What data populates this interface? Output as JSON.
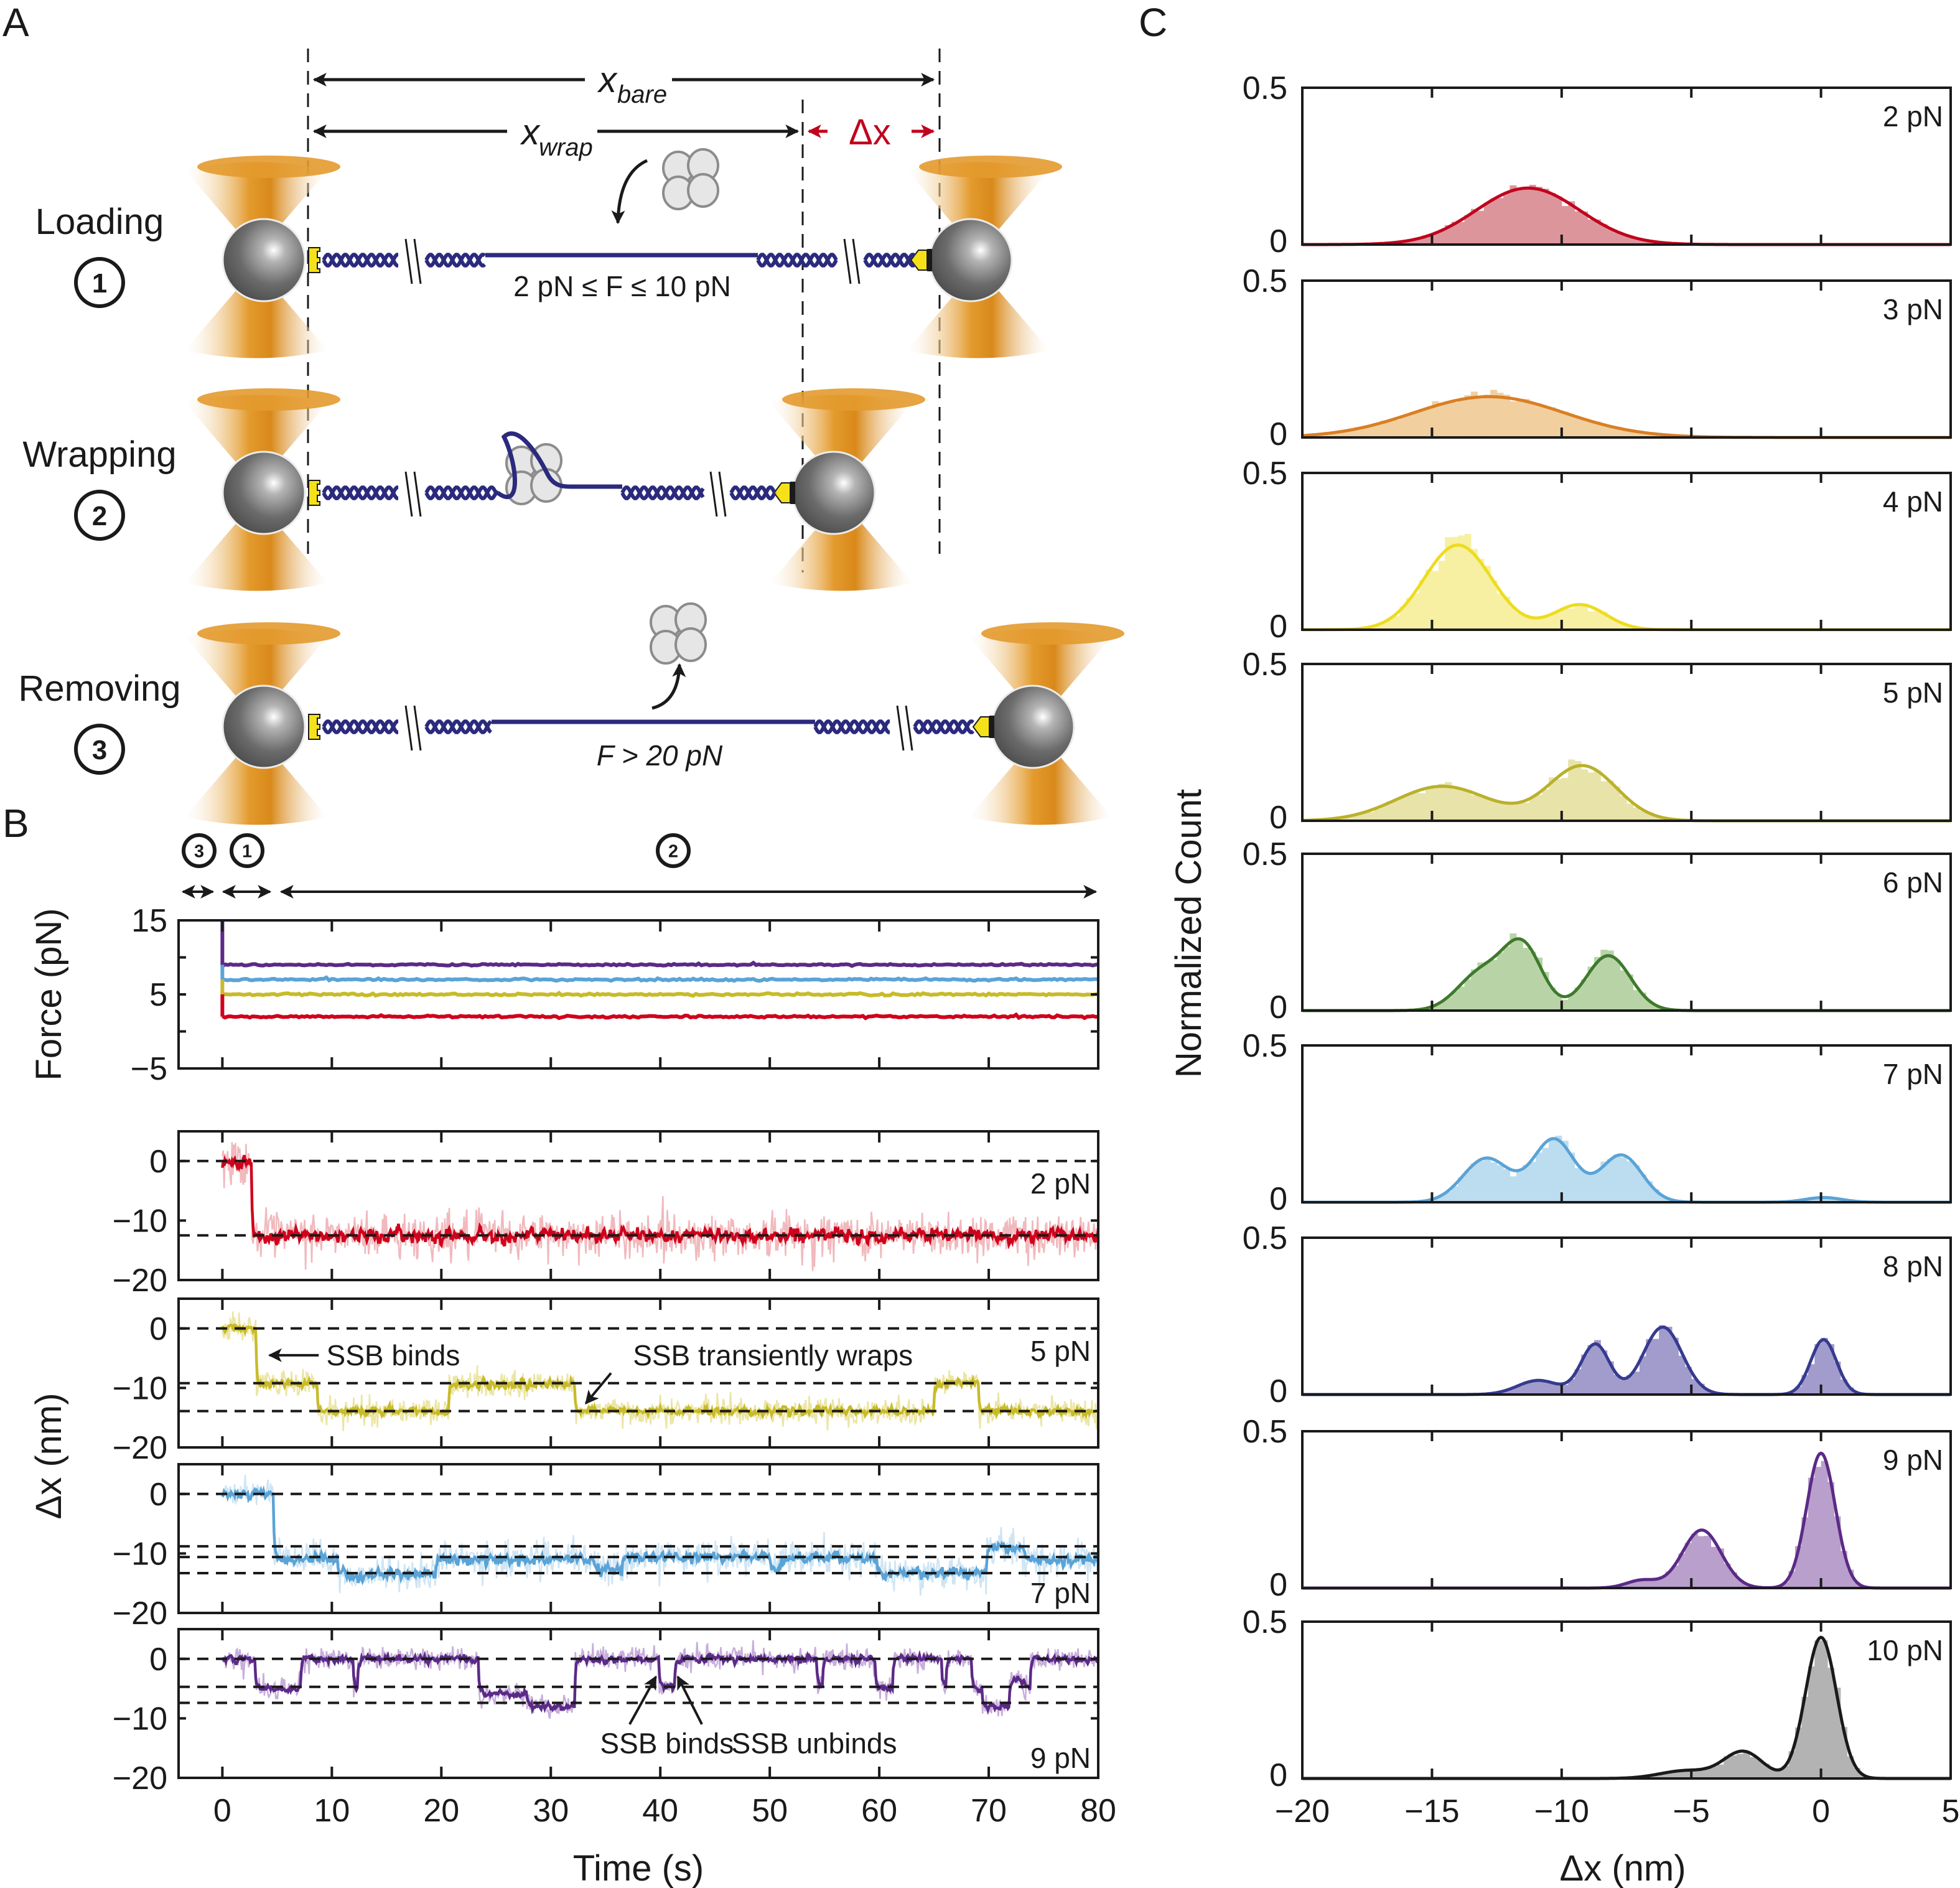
{
  "figure": {
    "panel_labels": {
      "a": "A",
      "b": "B",
      "c": "C"
    }
  },
  "diagram": {
    "x_bare_label": "x",
    "x_bare_sub": "bare",
    "x_wrap_label": "x",
    "x_wrap_sub": "wrap",
    "delta_x_label": "Δx",
    "rows": [
      {
        "label": "Loading",
        "step": "1",
        "force_text": "2 pN ≤ F ≤ 10 pN",
        "state": "loading"
      },
      {
        "label": "Wrapping",
        "step": "2",
        "force_text": "",
        "state": "wrapping"
      },
      {
        "label": "Removing",
        "step": "3",
        "force_text": "F > 20 pN",
        "state": "removing"
      }
    ],
    "colors": {
      "dna": "#2b2a7d",
      "trap": "#e39a2d",
      "bead": "#6b6b6b",
      "handle": "#f5e11a",
      "ssb": "#e6e6e6",
      "delta": "#c0051e"
    }
  },
  "timeline": {
    "steps": [
      "3",
      "1",
      "2"
    ]
  },
  "chart_data": [
    {
      "id": "force-vs-time",
      "type": "line",
      "title": "",
      "xlabel": "Time (s)",
      "ylabel": "Force (pN)",
      "xlim": [
        -4,
        80
      ],
      "ylim": [
        -5,
        15
      ],
      "yticks": [
        -5,
        5,
        15
      ],
      "xticks": [
        0,
        10,
        20,
        30,
        40,
        50,
        60,
        70,
        80
      ],
      "series": [
        {
          "name": "9 pN",
          "color": "#5b2a86",
          "start": 0,
          "initial": 15,
          "level": 9
        },
        {
          "name": "7 pN",
          "color": "#5aa3d6",
          "start": 0,
          "initial": 9,
          "level": 7
        },
        {
          "name": "5 pN",
          "color": "#c8bb2a",
          "start": 0,
          "initial": 7,
          "level": 5
        },
        {
          "name": "2 pN",
          "color": "#d0021b",
          "start": 0,
          "initial": 5,
          "level": 2
        }
      ]
    },
    {
      "id": "dx-traces",
      "type": "line",
      "xlabel": "Time (s)",
      "ylabel": "Δx (nm)",
      "xlim": [
        -4,
        80
      ],
      "ylim": [
        -20,
        5
      ],
      "yticks": [
        -20,
        -10,
        0
      ],
      "xticks": [
        0,
        10,
        20,
        30,
        40,
        50,
        60,
        70,
        80
      ],
      "xtick_labels": [
        "0",
        "10",
        "20",
        "30",
        "40",
        "50",
        "60",
        "70",
        "80"
      ],
      "panels": [
        {
          "force": "2 pN",
          "color": "#d0021b",
          "light": "#f1b9bd",
          "noise": 1.2,
          "dashed_levels": [
            0,
            -12.5
          ],
          "segments": [
            [
              0,
              2.7,
              0
            ],
            [
              2.7,
              80,
              -12.5
            ]
          ],
          "annotations": []
        },
        {
          "force": "5 pN",
          "color": "#c8bb2a",
          "light": "#ece6a6",
          "noise": 0.7,
          "dashed_levels": [
            0,
            -9.2,
            -13.9
          ],
          "segments": [
            [
              0,
              3.1,
              0
            ],
            [
              3.1,
              8.7,
              -9.2
            ],
            [
              8.7,
              20.7,
              -13.9
            ],
            [
              20.7,
              32.2,
              -9.4
            ],
            [
              32.2,
              65.0,
              -13.9
            ],
            [
              65.0,
              69.1,
              -9.2
            ],
            [
              69.1,
              80,
              -13.9
            ]
          ],
          "annotations": [
            {
              "text": "SSB binds",
              "t": 9.5,
              "y": -4.5,
              "arrow_to_t": 4.3,
              "arrow_to_y": -4.5,
              "arrow_from_t": 8.8,
              "arrow_from_y": -4.5
            },
            {
              "text": "SSB transiently wraps",
              "t": 37.5,
              "y": -4.5,
              "arrow_from_t": 35.5,
              "arrow_from_y": -7.5,
              "arrow_to_t": 33.2,
              "arrow_to_y": -12.6
            }
          ]
        },
        {
          "force": "7 pN",
          "color": "#5aa3d6",
          "light": "#cfe5f4",
          "noise": 0.9,
          "dashed_levels": [
            0,
            -8.8,
            -10.6,
            -13.3
          ],
          "segments": [
            [
              0,
              4.7,
              0
            ],
            [
              4.7,
              10.5,
              -11.0
            ],
            [
              10.5,
              19.5,
              -13.5
            ],
            [
              19.5,
              34.0,
              -11.0
            ],
            [
              34.0,
              36.5,
              -12.6
            ],
            [
              36.5,
              50.0,
              -10.6
            ],
            [
              50.0,
              51.0,
              -12.5
            ],
            [
              51.0,
              59.8,
              -10.7
            ],
            [
              59.8,
              69.8,
              -13.3
            ],
            [
              69.8,
              73.2,
              -9.0
            ],
            [
              73.2,
              80,
              -11.0
            ]
          ],
          "annotations": []
        },
        {
          "force": "9 pN",
          "color": "#5b2a86",
          "light": "#c7aedb",
          "noise": 0.6,
          "dashed_levels": [
            0,
            -4.7,
            -7.4
          ],
          "segments": [
            [
              0,
              3.0,
              0
            ],
            [
              3.0,
              7.2,
              -5.0
            ],
            [
              7.2,
              12.0,
              0
            ],
            [
              12.0,
              12.4,
              -4.8
            ],
            [
              12.4,
              23.4,
              0
            ],
            [
              23.4,
              27.8,
              -5.8
            ],
            [
              27.8,
              32.2,
              -8.0
            ],
            [
              32.2,
              39.9,
              0
            ],
            [
              39.9,
              41.3,
              -4.6
            ],
            [
              41.3,
              54.3,
              0
            ],
            [
              54.3,
              54.8,
              -4.5
            ],
            [
              54.8,
              59.6,
              0
            ],
            [
              59.6,
              61.2,
              -4.8
            ],
            [
              61.2,
              65.7,
              0
            ],
            [
              65.7,
              66.1,
              -4.6
            ],
            [
              66.1,
              68.4,
              0
            ],
            [
              68.4,
              69.4,
              -5.0
            ],
            [
              69.4,
              71.9,
              -8.0
            ],
            [
              71.9,
              73.2,
              -3.8
            ],
            [
              73.2,
              73.8,
              -5.0
            ],
            [
              73.8,
              80,
              0
            ]
          ],
          "annotations": [
            {
              "text": "SSB binds",
              "t": 34.5,
              "y": -14.2,
              "arrow_from_t": 37.2,
              "arrow_from_y": -11.0,
              "arrow_to_t": 39.6,
              "arrow_to_y": -3.0
            },
            {
              "text": "SSB unbinds",
              "t": 46.5,
              "y": -14.2,
              "arrow_from_t": 43.8,
              "arrow_from_y": -11.0,
              "arrow_to_t": 41.6,
              "arrow_to_y": -3.0
            }
          ]
        }
      ]
    },
    {
      "id": "dx-histograms",
      "type": "bar",
      "xlabel": "Δx (nm)",
      "ylabel": "Normalized Count",
      "xlim": [
        -20,
        5
      ],
      "ylim": [
        0,
        0.5
      ],
      "xticks": [
        -20,
        -15,
        -10,
        -5,
        0,
        5
      ],
      "xtick_labels": [
        "−20",
        "−15",
        "−10",
        "−5",
        "0",
        "5"
      ],
      "ytick_labels": [
        "0",
        "0.5"
      ],
      "panels": [
        {
          "force": "2 pN",
          "line": "#c0051e",
          "fill": "#dd959c",
          "peaks": [
            {
              "mu": -11.3,
              "sigma": 2.0,
              "height": 0.18
            }
          ]
        },
        {
          "force": "3 pN",
          "line": "#d97f24",
          "fill": "#f1cf9f",
          "peaks": [
            {
              "mu": -12.8,
              "sigma": 2.9,
              "height": 0.13
            }
          ]
        },
        {
          "force": "4 pN",
          "line": "#eddc1f",
          "fill": "#f7f0a3",
          "peaks": [
            {
              "mu": -14.0,
              "sigma": 1.3,
              "height": 0.27
            },
            {
              "mu": -9.3,
              "sigma": 1.0,
              "height": 0.08
            }
          ]
        },
        {
          "force": "5 pN",
          "line": "#b9b12b",
          "fill": "#e8e3a8",
          "peaks": [
            {
              "mu": -14.6,
              "sigma": 1.8,
              "height": 0.11
            },
            {
              "mu": -9.2,
              "sigma": 1.3,
              "height": 0.175
            }
          ]
        },
        {
          "force": "6 pN",
          "line": "#3f7a2c",
          "fill": "#b8d4a6",
          "peaks": [
            {
              "mu": -13.1,
              "sigma": 0.9,
              "height": 0.12
            },
            {
              "mu": -11.5,
              "sigma": 0.75,
              "height": 0.2
            },
            {
              "mu": -8.2,
              "sigma": 0.85,
              "height": 0.175
            }
          ]
        },
        {
          "force": "7 pN",
          "line": "#5aa3d6",
          "fill": "#bcdcf0",
          "peaks": [
            {
              "mu": -12.9,
              "sigma": 0.9,
              "height": 0.14
            },
            {
              "mu": -10.3,
              "sigma": 0.8,
              "height": 0.2
            },
            {
              "mu": -7.7,
              "sigma": 0.8,
              "height": 0.15
            },
            {
              "mu": 0.1,
              "sigma": 0.7,
              "height": 0.015
            }
          ]
        },
        {
          "force": "8 pN",
          "line": "#363b8f",
          "fill": "#a19ccc",
          "peaks": [
            {
              "mu": -10.9,
              "sigma": 0.8,
              "height": 0.045
            },
            {
              "mu": -8.7,
              "sigma": 0.55,
              "height": 0.16
            },
            {
              "mu": -6.1,
              "sigma": 0.75,
              "height": 0.215
            },
            {
              "mu": 0.1,
              "sigma": 0.5,
              "height": 0.175
            }
          ]
        },
        {
          "force": "9 pN",
          "line": "#5b2a86",
          "fill": "#b99fcb",
          "peaks": [
            {
              "mu": -6.9,
              "sigma": 0.6,
              "height": 0.025
            },
            {
              "mu": -4.6,
              "sigma": 0.75,
              "height": 0.185
            },
            {
              "mu": 0.0,
              "sigma": 0.55,
              "height": 0.43
            }
          ]
        },
        {
          "force": "10 pN",
          "line": "#1a1a1a",
          "fill": "#b3b3b3",
          "peaks": [
            {
              "mu": -5.2,
              "sigma": 1.0,
              "height": 0.025
            },
            {
              "mu": -3.0,
              "sigma": 0.75,
              "height": 0.085
            },
            {
              "mu": 0.0,
              "sigma": 0.6,
              "height": 0.45
            }
          ]
        }
      ]
    }
  ]
}
